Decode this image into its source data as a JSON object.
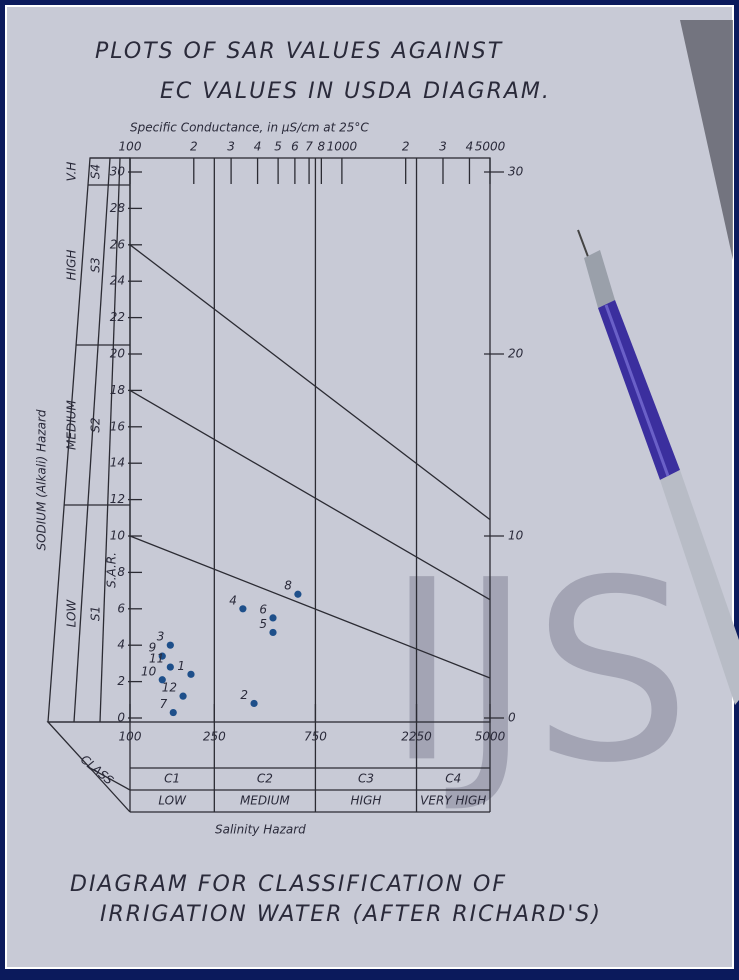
{
  "chart_data": {
    "type": "scatter",
    "title": [
      "PLOTS OF SAR VALUES AGAINST",
      "EC VALUES IN USDA DIAGRAM."
    ],
    "x2label": "Specific Conductance, in µS/cm at 25°C",
    "ylabel": "SODIUM (Alkali) Hazard",
    "ylabel_inner": "S.A.R.",
    "xlabel": "Salinity Hazard",
    "caption": [
      "DIAGRAM FOR CLASSIFICATION OF",
      "IRRIGATION WATER (AFTER RICHARD'S)"
    ],
    "watermark": "IJS",
    "xscale": "log",
    "xlim": [
      100,
      5000
    ],
    "ylim": [
      0,
      30
    ],
    "y2lim": [
      0,
      30
    ],
    "xticks": [
      100,
      250,
      750,
      2250,
      5000
    ],
    "x2ticks": [
      100,
      {
        "value": 200,
        "label": "2"
      },
      {
        "value": 300,
        "label": "3"
      },
      {
        "value": 400,
        "label": "4"
      },
      {
        "value": 500,
        "label": "5"
      },
      {
        "value": 600,
        "label": "6"
      },
      {
        "value": 700,
        "label": "7"
      },
      {
        "value": 800,
        "label": "8"
      },
      1000,
      {
        "value": 2000,
        "label": "2"
      },
      {
        "value": 3000,
        "label": "3"
      },
      {
        "value": 4000,
        "label": "4"
      },
      5000
    ],
    "yticks": [
      0,
      2,
      4,
      6,
      8,
      10,
      12,
      14,
      16,
      18,
      20,
      22,
      24,
      26,
      28,
      30
    ],
    "y2ticks": [
      0,
      10,
      20,
      30
    ],
    "x": [
      194,
      385,
      155,
      341,
      473,
      473,
      160,
      620,
      142,
      142,
      155,
      178
    ],
    "values": [
      2.4,
      0.8,
      4.0,
      6.0,
      4.7,
      5.5,
      0.3,
      6.8,
      3.4,
      2.1,
      2.8,
      1.2
    ],
    "point_labels": [
      "1",
      "2",
      "3",
      "4",
      "5",
      "6",
      "7",
      "8",
      "9",
      "10",
      "11",
      "12"
    ],
    "color": "#1e4f8a",
    "boundaries": [
      {
        "x": [
          100,
          5000
        ],
        "values": [
          26,
          10.9
        ]
      },
      {
        "x": [
          100,
          5000
        ],
        "values": [
          18,
          6.5
        ]
      },
      {
        "x": [
          100,
          5000
        ],
        "values": [
          10,
          2.2
        ]
      }
    ],
    "class_dividers": [
      250,
      750,
      2250
    ],
    "class_header": "CLASS",
    "classes": [
      "C1",
      "C2",
      "C3",
      "C4"
    ],
    "class_names": [
      "LOW",
      "MEDIUM",
      "HIGH",
      "VERY HIGH"
    ],
    "sodium_classes": [
      {
        "class": "S1",
        "name": "LOW"
      },
      {
        "class": "S2",
        "name": "MEDIUM"
      },
      {
        "class": "S3",
        "name": "HIGH"
      },
      {
        "class": "S4",
        "name": "V.H"
      }
    ]
  }
}
